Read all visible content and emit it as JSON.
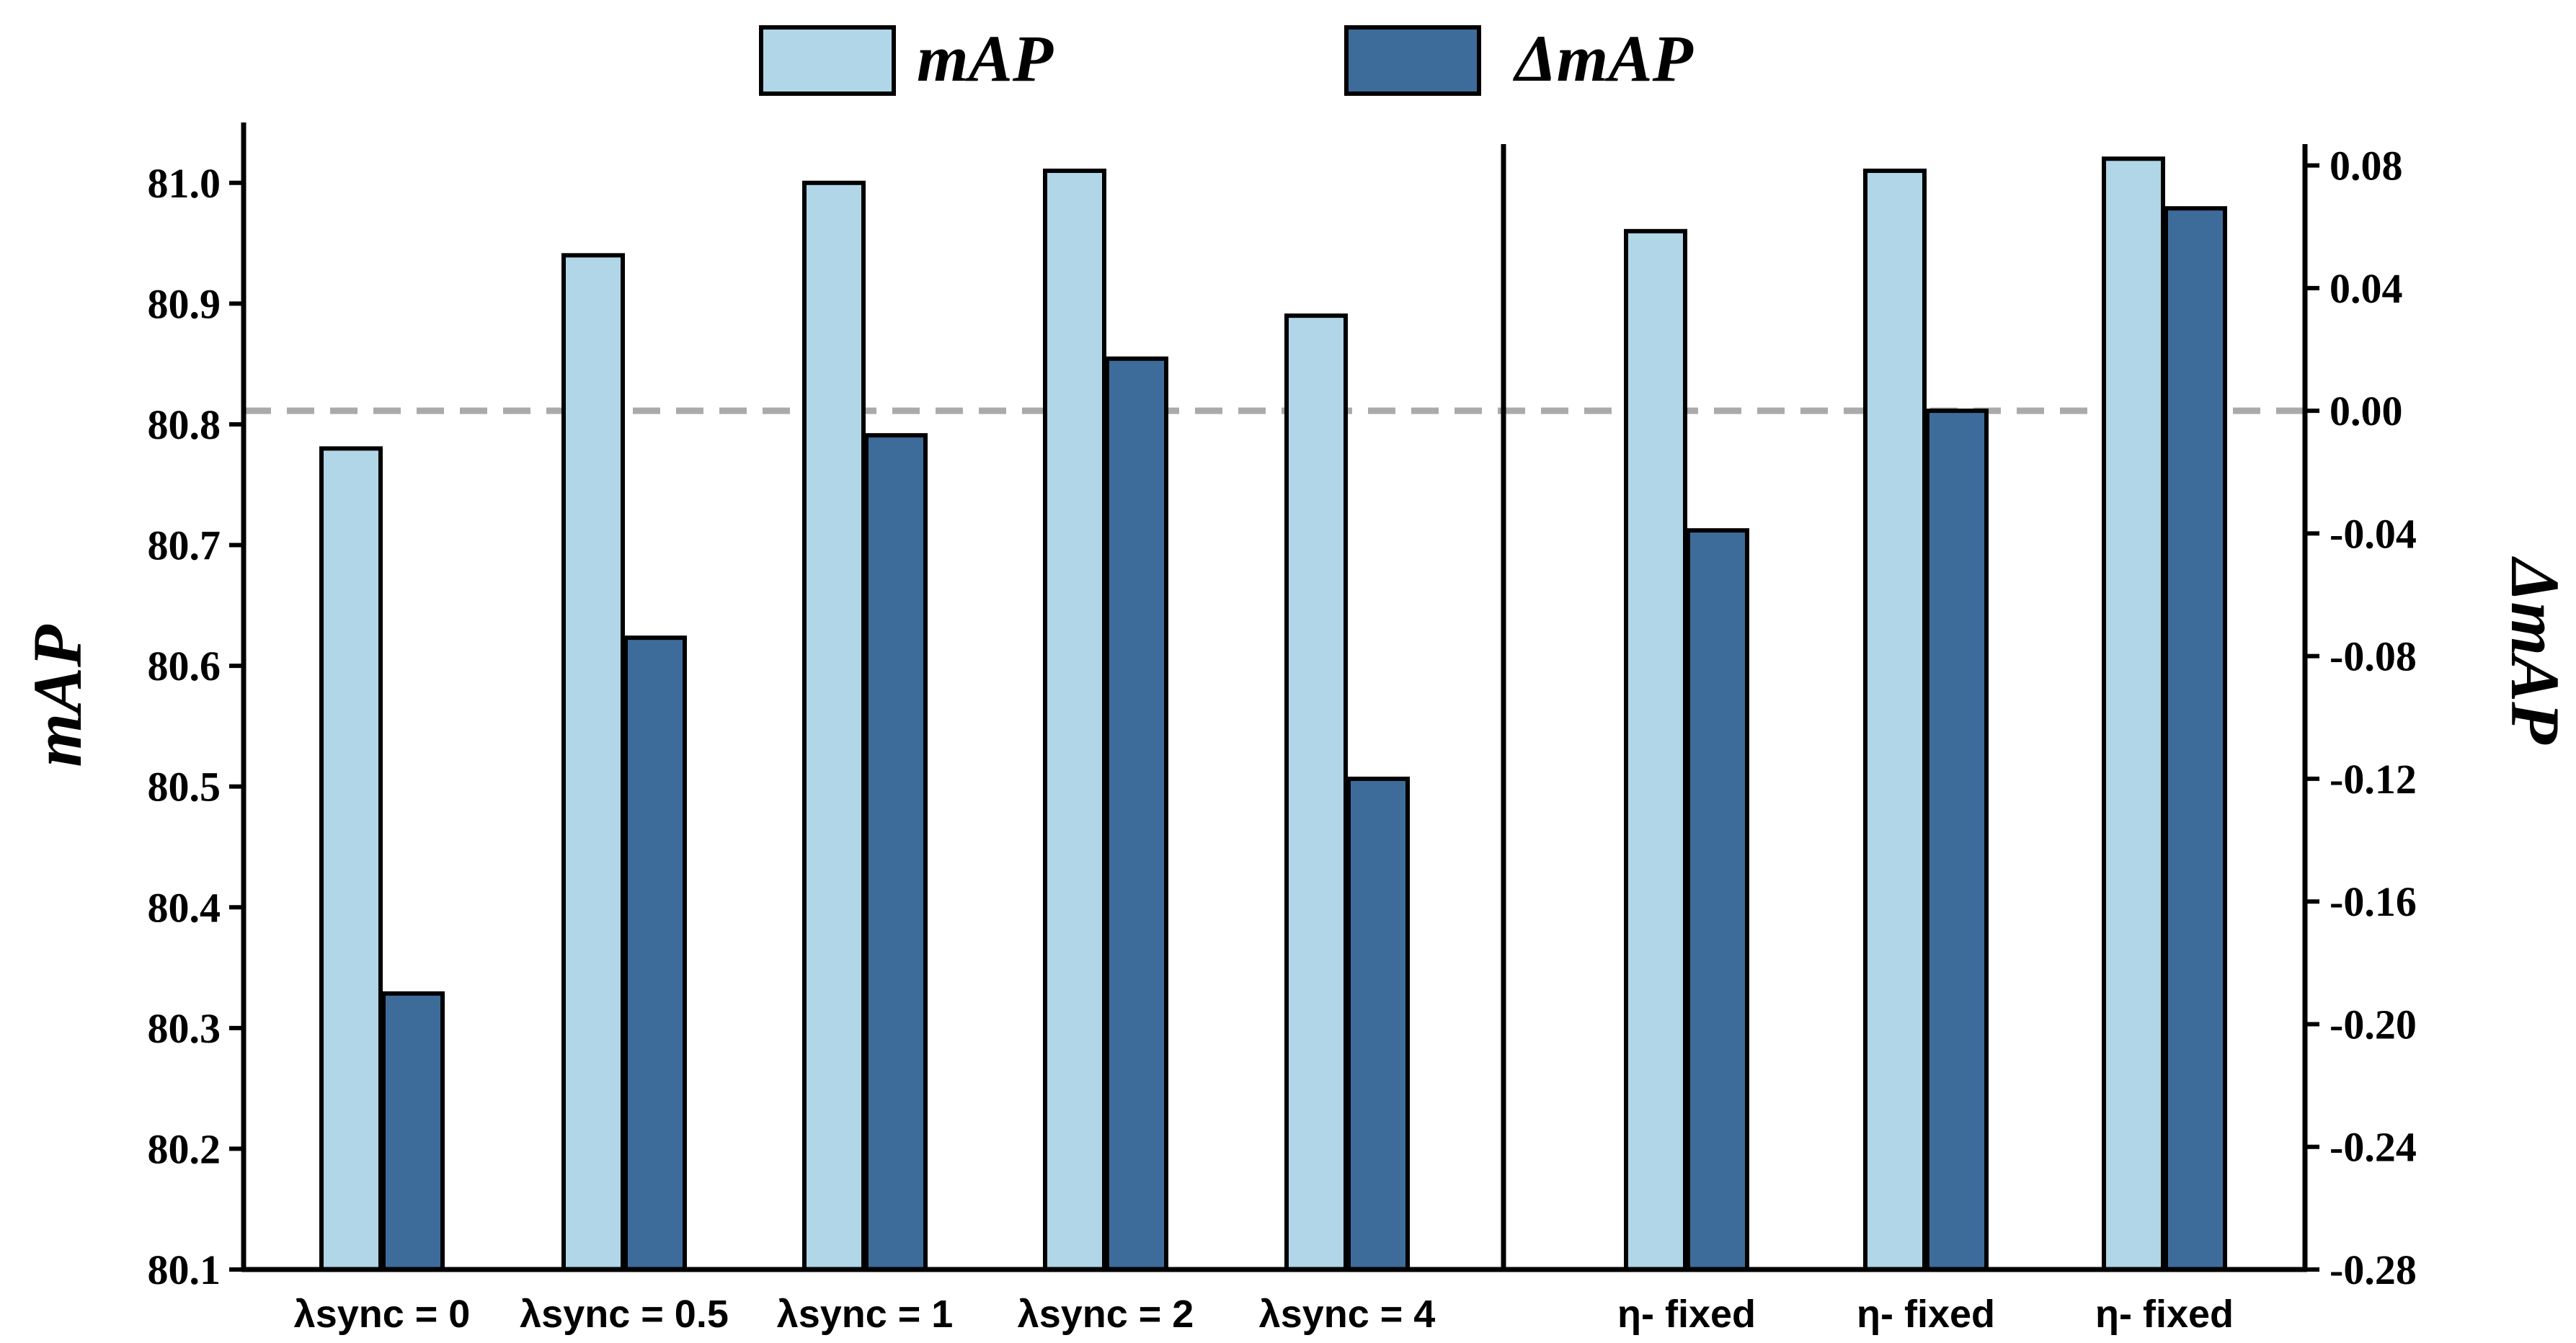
{
  "chart_data": {
    "type": "bar",
    "title": "",
    "categories": [
      "λsync = 0",
      "λsync = 0.5",
      "λsync = 1",
      "λsync = 2",
      "λsync = 4",
      "η- fixed",
      "η- fixed",
      "η- fixed"
    ],
    "series": [
      {
        "name": "mAP",
        "axis": "left",
        "color": "#b0d6e8",
        "values": [
          80.78,
          80.94,
          81.0,
          81.01,
          80.89,
          80.96,
          81.01,
          81.02
        ]
      },
      {
        "name": "ΔmAP",
        "axis": "right",
        "color": "#3e6c9a",
        "values": [
          -0.19,
          -0.074,
          -0.008,
          0.017,
          -0.12,
          -0.039,
          0.0,
          0.066
        ]
      }
    ],
    "ylabel": "mAP",
    "y2label": "ΔmAP",
    "xlabel": "",
    "ylim": [
      80.1,
      81.05
    ],
    "y2lim": [
      -0.28,
      0.094
    ],
    "yticks": [
      "80.1",
      "80.2",
      "80.3",
      "80.4",
      "80.5",
      "80.6",
      "80.7",
      "80.8",
      "80.9",
      "81.0"
    ],
    "y2ticks": [
      "-0.28",
      "-0.24",
      "-0.20",
      "-0.16",
      "-0.12",
      "-0.08",
      "-0.04",
      "0.00",
      "0.04",
      "0.08"
    ],
    "reference_line": {
      "axis": "right",
      "value": 0.0,
      "style": "dashed",
      "color": "#aaaaaa"
    },
    "group_separator_after_index": 4,
    "legend": {
      "position": "top-center",
      "entries": [
        "mAP",
        "ΔmAP"
      ]
    },
    "grid": false
  }
}
